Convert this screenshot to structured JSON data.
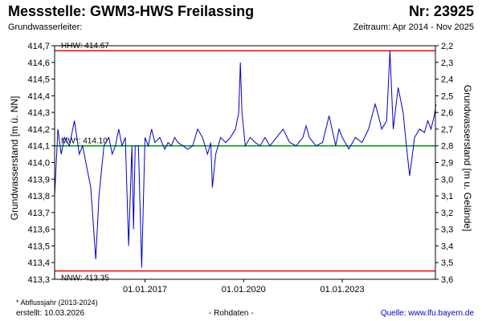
{
  "header": {
    "title": "Messstelle: GWM3-HWS Freilassing",
    "number": "Nr: 23925",
    "subtitle": "Grundwasserleiter:",
    "period": "Zeitraum: Apr 2014 - Nov 2025"
  },
  "footer": {
    "note": "* Abflussjahr (2013-2024)",
    "created": "erstellt:  10.03.2026",
    "raw": "- Rohdaten -",
    "source": "Quelle: www.lfu.bayern.de"
  },
  "colors": {
    "series": "#0000cc",
    "limit_lines": "#ff0000",
    "mean_line": "#009900",
    "frame": "#000000"
  },
  "chart_data": {
    "type": "line",
    "xlabel": "",
    "ylabel": "Grundwasserstand [m ü. NN]",
    "y2label": "Grundwasserstand [m u. Gelände]",
    "xlim": [
      "2014-04",
      "2025-11"
    ],
    "ylim": [
      413.3,
      414.7
    ],
    "y2lim": [
      3.6,
      2.2
    ],
    "x_ticks": [
      "01.01.2017",
      "01.01.2020",
      "01.01.2023"
    ],
    "y_ticks": [
      "413,3",
      "413,4",
      "413,5",
      "413,6",
      "413,7",
      "413,8",
      "413,9",
      "414,0",
      "414,1",
      "414,2",
      "414,3",
      "414,4",
      "414,5",
      "414,6",
      "414,7"
    ],
    "y2_ticks": [
      "2,2",
      "2,3",
      "2,4",
      "2,5",
      "2,6",
      "2,7",
      "2,8",
      "2,9",
      "3,0",
      "3,1",
      "3,2",
      "3,3",
      "3,4",
      "3,5",
      "3,6"
    ],
    "grid": false,
    "ref_lines": [
      {
        "label": "HHW: 414.67",
        "value": 414.67,
        "color": "#ff0000"
      },
      {
        "label": "MW*: 414.10",
        "value": 414.1,
        "color": "#009900"
      },
      {
        "label": "NNW: 413.35",
        "value": 413.35,
        "color": "#ff0000"
      }
    ],
    "series": [
      {
        "name": "",
        "x": [
          2014.25,
          2014.35,
          2014.45,
          2014.55,
          2014.7,
          2014.85,
          2015.0,
          2015.1,
          2015.2,
          2015.35,
          2015.5,
          2015.6,
          2015.75,
          2015.9,
          2016.0,
          2016.1,
          2016.2,
          2016.3,
          2016.4,
          2016.5,
          2016.6,
          2016.65,
          2016.7,
          2016.8,
          2016.9,
          2017.0,
          2017.1,
          2017.2,
          2017.3,
          2017.45,
          2017.6,
          2017.7,
          2017.8,
          2017.9,
          2018.0,
          2018.15,
          2018.3,
          2018.45,
          2018.6,
          2018.75,
          2018.9,
          2019.0,
          2019.05,
          2019.15,
          2019.3,
          2019.45,
          2019.6,
          2019.75,
          2019.85,
          2019.9,
          2019.95,
          2020.05,
          2020.2,
          2020.35,
          2020.5,
          2020.65,
          2020.8,
          2021.0,
          2021.2,
          2021.4,
          2021.6,
          2021.8,
          2021.9,
          2022.0,
          2022.2,
          2022.4,
          2022.6,
          2022.8,
          2022.9,
          2023.0,
          2023.2,
          2023.4,
          2023.6,
          2023.8,
          2024.0,
          2024.1,
          2024.2,
          2024.35,
          2024.45,
          2024.55,
          2024.7,
          2024.85,
          2024.95,
          2025.05,
          2025.2,
          2025.35,
          2025.5,
          2025.6,
          2025.7,
          2025.8,
          2025.85
        ],
        "y": [
          413.8,
          414.2,
          414.05,
          414.15,
          414.1,
          414.25,
          414.05,
          414.1,
          414.0,
          413.85,
          413.42,
          413.8,
          414.1,
          414.15,
          414.05,
          414.1,
          414.2,
          414.1,
          414.15,
          413.5,
          414.1,
          413.6,
          414.1,
          414.1,
          413.37,
          414.15,
          414.1,
          414.2,
          414.12,
          414.15,
          414.08,
          414.12,
          414.1,
          414.15,
          414.12,
          414.1,
          414.08,
          414.1,
          414.2,
          414.15,
          414.05,
          414.12,
          413.85,
          414.05,
          414.15,
          414.12,
          414.15,
          414.2,
          414.3,
          414.6,
          414.3,
          414.1,
          414.15,
          414.12,
          414.1,
          414.15,
          414.1,
          414.15,
          414.2,
          414.12,
          414.1,
          414.15,
          414.22,
          414.15,
          414.1,
          414.12,
          414.28,
          414.1,
          414.2,
          414.15,
          414.08,
          414.15,
          414.12,
          414.2,
          414.35,
          414.28,
          414.2,
          414.25,
          414.67,
          414.2,
          414.45,
          414.3,
          414.1,
          413.92,
          414.15,
          414.2,
          414.18,
          414.25,
          414.2,
          414.28,
          414.35
        ]
      }
    ]
  }
}
